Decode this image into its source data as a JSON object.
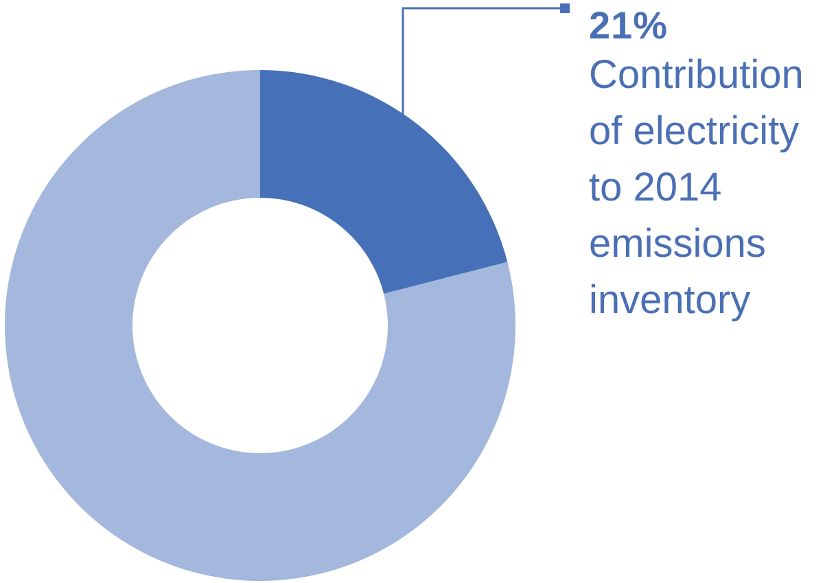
{
  "chart_data": {
    "type": "pie",
    "donut": true,
    "slices": [
      {
        "value": 21,
        "color": "#4670b7"
      },
      {
        "value": 79,
        "color": "#a4b7dc"
      }
    ],
    "annotation": {
      "value_text": "21%",
      "text": "Contribution\nof electricity\nto 2014\nemissions\ninventory",
      "color": "#4a6fb5"
    }
  }
}
